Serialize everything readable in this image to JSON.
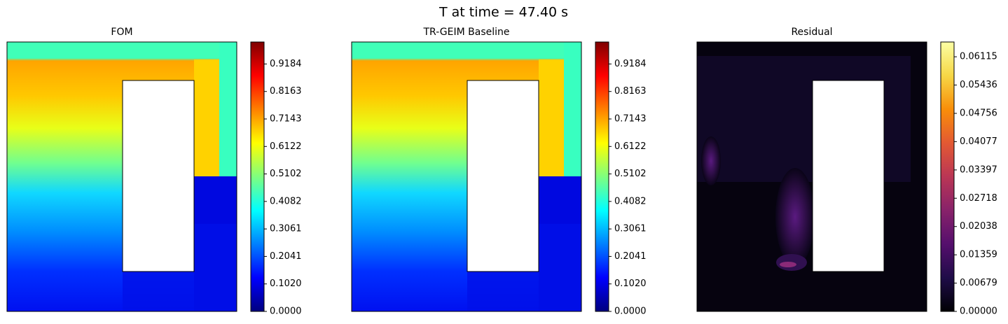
{
  "title": "T at time = 47.40 s",
  "chart_data": [
    {
      "type": "contour",
      "title": "FOM",
      "colors": [
        "#00007f",
        "#0000ff",
        "#0080ff",
        "#00ffff",
        "#7fff7f",
        "#ffff00",
        "#ff8000",
        "#ff0000",
        "#7f0000"
      ],
      "ylim": [
        0,
        1
      ],
      "yticks": [
        {
          "value": 0,
          "label": "0.0000"
        },
        {
          "value": 0.102,
          "label": "0.1020"
        },
        {
          "value": 0.2041,
          "label": "0.2041"
        },
        {
          "value": 0.3061,
          "label": "0.3061"
        },
        {
          "value": 0.4082,
          "label": "0.4082"
        },
        {
          "value": 0.5102,
          "label": "0.5102"
        },
        {
          "value": 0.6122,
          "label": "0.6122"
        },
        {
          "value": 0.7143,
          "label": "0.7143"
        },
        {
          "value": 0.8163,
          "label": "0.8163"
        },
        {
          "value": 0.9184,
          "label": "0.9184"
        }
      ]
    },
    {
      "type": "contour",
      "title": "TR-GEIM Baseline",
      "colors": [
        "#00007f",
        "#0000ff",
        "#0080ff",
        "#00ffff",
        "#7fff7f",
        "#ffff00",
        "#ff8000",
        "#ff0000",
        "#7f0000"
      ],
      "ylim": [
        0,
        1
      ],
      "yticks": [
        {
          "value": 0,
          "label": "0.0000"
        },
        {
          "value": 0.102,
          "label": "0.1020"
        },
        {
          "value": 0.2041,
          "label": "0.2041"
        },
        {
          "value": 0.3061,
          "label": "0.3061"
        },
        {
          "value": 0.4082,
          "label": "0.4082"
        },
        {
          "value": 0.5102,
          "label": "0.5102"
        },
        {
          "value": 0.6122,
          "label": "0.6122"
        },
        {
          "value": 0.7143,
          "label": "0.7143"
        },
        {
          "value": 0.8163,
          "label": "0.8163"
        },
        {
          "value": 0.9184,
          "label": "0.9184"
        }
      ]
    },
    {
      "type": "contour",
      "title": "Residual",
      "colors": [
        "#000004",
        "#1f0c48",
        "#550f6d",
        "#88226a",
        "#ba3655",
        "#e35933",
        "#f98e09",
        "#f6d746",
        "#fcffa4"
      ],
      "ylim": [
        0,
        0.0647
      ],
      "yticks": [
        {
          "value": 0,
          "label": "0.00000"
        },
        {
          "value": 0.00679,
          "label": "0.00679"
        },
        {
          "value": 0.01359,
          "label": "0.01359"
        },
        {
          "value": 0.02038,
          "label": "0.02038"
        },
        {
          "value": 0.02718,
          "label": "0.02718"
        },
        {
          "value": 0.03397,
          "label": "0.03397"
        },
        {
          "value": 0.04077,
          "label": "0.04077"
        },
        {
          "value": 0.04756,
          "label": "0.04756"
        },
        {
          "value": 0.05436,
          "label": "0.05436"
        },
        {
          "value": 0.06115,
          "label": "0.06115"
        }
      ]
    }
  ]
}
